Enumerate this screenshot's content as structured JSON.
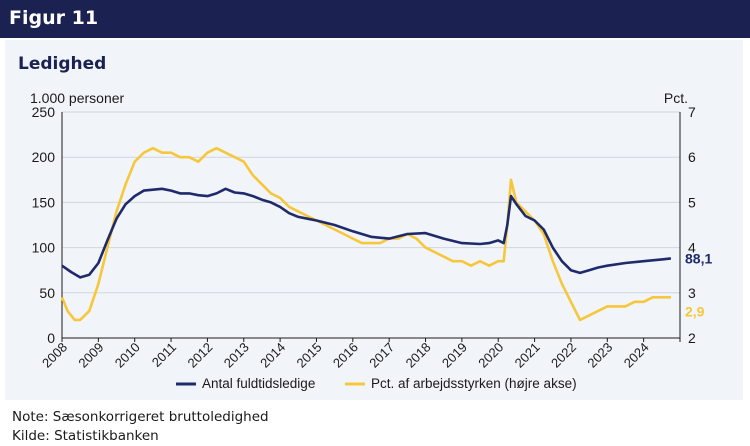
{
  "header": {
    "figure_label": "Figur 11"
  },
  "chart_title": "Ledighed",
  "note": "Note: Sæsonkorrigeret bruttoledighed",
  "source": "Kilde: Statistikbanken",
  "colors": {
    "header_bg": "#1b2150",
    "navy": "#1f2a6b",
    "yellow": "#f6c73a",
    "panel": "#f1f5fa"
  },
  "chart_data": {
    "type": "line",
    "left_unit": "1.000 personer",
    "right_unit": "Pct.",
    "y_left": {
      "min": 0,
      "max": 250,
      "ticks": [
        0,
        50,
        100,
        150,
        200,
        250
      ]
    },
    "y_right": {
      "min": 2,
      "max": 7,
      "ticks": [
        2,
        3,
        4,
        5,
        6,
        7
      ]
    },
    "x_range": [
      2008.0,
      2025.0
    ],
    "x_ticks": [
      "2008",
      "2009",
      "2010",
      "2011",
      "2012",
      "2013",
      "2014",
      "2015",
      "2016",
      "2017",
      "2018",
      "2019",
      "2020",
      "2021",
      "2022",
      "2023",
      "2024"
    ],
    "gridlines": true,
    "legend": "bottom",
    "series": [
      {
        "name": "Antal fuldtidsledige",
        "axis": "left",
        "color": "#1f2a6b",
        "end_label": "88,1",
        "x": [
          2008.0,
          2008.25,
          2008.5,
          2008.75,
          2009.0,
          2009.25,
          2009.5,
          2009.75,
          2010.0,
          2010.25,
          2010.5,
          2010.75,
          2011.0,
          2011.25,
          2011.5,
          2011.75,
          2012.0,
          2012.25,
          2012.5,
          2012.75,
          2013.0,
          2013.25,
          2013.5,
          2013.75,
          2014.0,
          2014.25,
          2014.5,
          2014.75,
          2015.0,
          2015.5,
          2016.0,
          2016.5,
          2017.0,
          2017.5,
          2018.0,
          2018.5,
          2019.0,
          2019.5,
          2019.75,
          2020.0,
          2020.15,
          2020.25,
          2020.35,
          2020.5,
          2020.75,
          2021.0,
          2021.25,
          2021.5,
          2021.75,
          2022.0,
          2022.25,
          2022.5,
          2022.75,
          2023.0,
          2023.5,
          2024.0,
          2024.5,
          2024.75
        ],
        "y": [
          80,
          73,
          67,
          70,
          83,
          108,
          132,
          148,
          157,
          163,
          164,
          165,
          163,
          160,
          160,
          158,
          157,
          160,
          165,
          161,
          160,
          157,
          153,
          150,
          145,
          138,
          134,
          132,
          130,
          125,
          118,
          112,
          110,
          115,
          116,
          110,
          105,
          104,
          105,
          108,
          105,
          125,
          157,
          148,
          135,
          130,
          120,
          100,
          85,
          75,
          72,
          75,
          78,
          80,
          83,
          85,
          87,
          88.1
        ]
      },
      {
        "name": "Pct. af arbejdsstyrken (højre akse)",
        "axis": "right",
        "color": "#f6c73a",
        "end_label": "2,9",
        "x": [
          2008.0,
          2008.15,
          2008.35,
          2008.5,
          2008.75,
          2009.0,
          2009.25,
          2009.5,
          2009.75,
          2010.0,
          2010.25,
          2010.5,
          2010.75,
          2011.0,
          2011.25,
          2011.5,
          2011.75,
          2012.0,
          2012.25,
          2012.5,
          2012.75,
          2013.0,
          2013.25,
          2013.5,
          2013.75,
          2014.0,
          2014.25,
          2014.5,
          2014.75,
          2015.0,
          2015.25,
          2015.5,
          2015.75,
          2016.0,
          2016.25,
          2016.5,
          2016.75,
          2017.0,
          2017.25,
          2017.5,
          2017.75,
          2018.0,
          2018.25,
          2018.5,
          2018.75,
          2019.0,
          2019.25,
          2019.5,
          2019.75,
          2020.0,
          2020.15,
          2020.25,
          2020.35,
          2020.5,
          2020.75,
          2021.0,
          2021.25,
          2021.5,
          2021.75,
          2022.0,
          2022.25,
          2022.5,
          2022.75,
          2023.0,
          2023.25,
          2023.5,
          2023.75,
          2024.0,
          2024.25,
          2024.5,
          2024.75
        ],
        "y": [
          2.9,
          2.6,
          2.4,
          2.4,
          2.6,
          3.2,
          4.0,
          4.8,
          5.4,
          5.9,
          6.1,
          6.2,
          6.1,
          6.1,
          6.0,
          6.0,
          5.9,
          6.1,
          6.2,
          6.1,
          6.0,
          5.9,
          5.6,
          5.4,
          5.2,
          5.1,
          4.9,
          4.8,
          4.7,
          4.6,
          4.5,
          4.4,
          4.3,
          4.2,
          4.1,
          4.1,
          4.1,
          4.2,
          4.2,
          4.3,
          4.2,
          4.0,
          3.9,
          3.8,
          3.7,
          3.7,
          3.6,
          3.7,
          3.6,
          3.7,
          3.7,
          4.5,
          5.5,
          5.0,
          4.8,
          4.6,
          4.3,
          3.7,
          3.2,
          2.8,
          2.4,
          2.5,
          2.6,
          2.7,
          2.7,
          2.7,
          2.8,
          2.8,
          2.9,
          2.9,
          2.9
        ]
      }
    ]
  }
}
